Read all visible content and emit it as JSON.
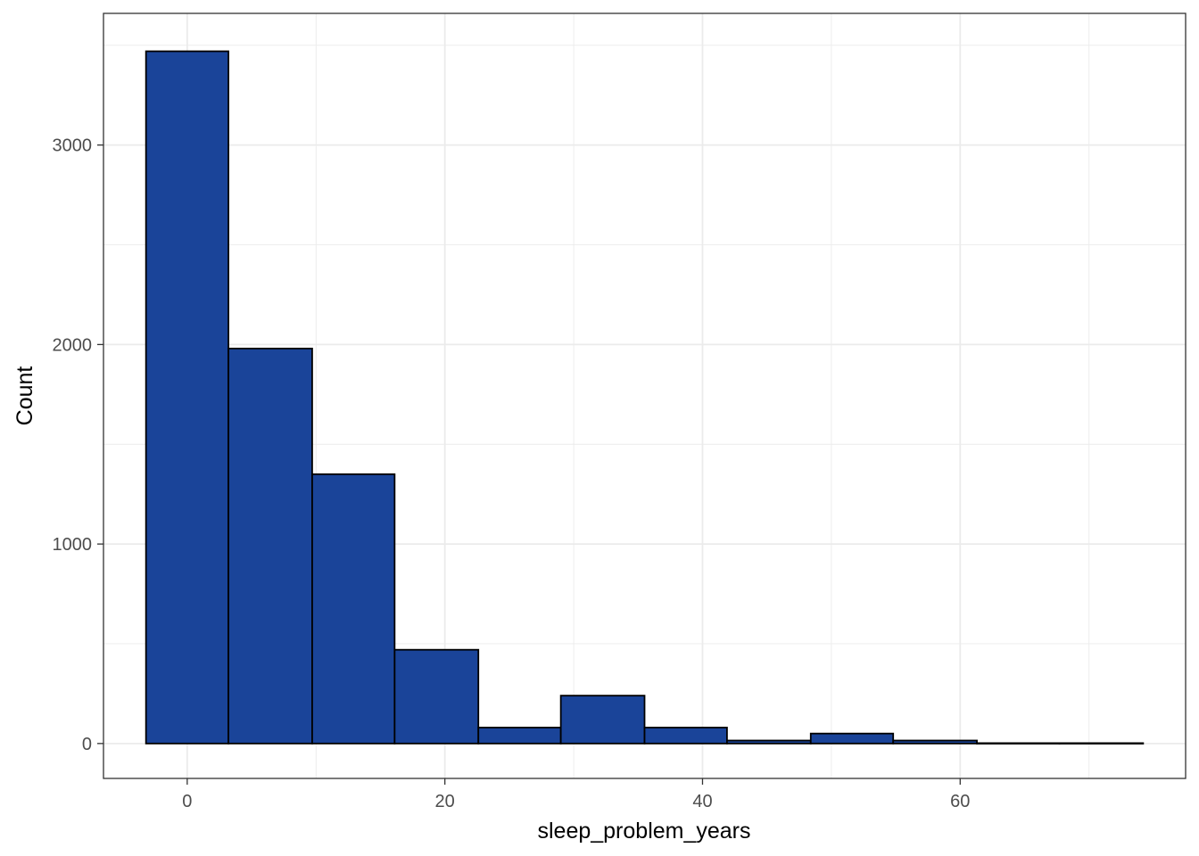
{
  "chart_data": {
    "type": "bar",
    "subtype": "histogram",
    "xlabel": "sleep_problem_years",
    "ylabel": "Count",
    "xlim": [
      -6.5,
      77.5
    ],
    "ylim": [
      -175,
      3660
    ],
    "x_ticks": [
      0,
      20,
      40,
      60
    ],
    "y_ticks": [
      0,
      1000,
      2000,
      3000
    ],
    "x_tick_labels": [
      "0",
      "20",
      "40",
      "60"
    ],
    "y_tick_labels": [
      "0",
      "1000",
      "2000",
      "3000"
    ],
    "grid": true,
    "legend": "none",
    "colors": {
      "bar_fill": "#1A4499",
      "bar_outline": "#000000",
      "panel_border": "#333333",
      "grid": "#EBEBEB"
    },
    "bins": [
      {
        "x0": -3.2,
        "x1": 3.2,
        "count": 3470
      },
      {
        "x0": 3.2,
        "x1": 9.7,
        "count": 1980
      },
      {
        "x0": 9.7,
        "x1": 16.1,
        "count": 1350
      },
      {
        "x0": 16.1,
        "x1": 22.6,
        "count": 470
      },
      {
        "x0": 22.6,
        "x1": 29.0,
        "count": 80
      },
      {
        "x0": 29.0,
        "x1": 35.5,
        "count": 240
      },
      {
        "x0": 35.5,
        "x1": 41.9,
        "count": 80
      },
      {
        "x0": 41.9,
        "x1": 48.4,
        "count": 15
      },
      {
        "x0": 48.4,
        "x1": 54.8,
        "count": 50
      },
      {
        "x0": 54.8,
        "x1": 61.3,
        "count": 15
      },
      {
        "x0": 61.3,
        "x1": 67.7,
        "count": 2
      },
      {
        "x0": 67.7,
        "x1": 74.2,
        "count": 2
      }
    ]
  }
}
